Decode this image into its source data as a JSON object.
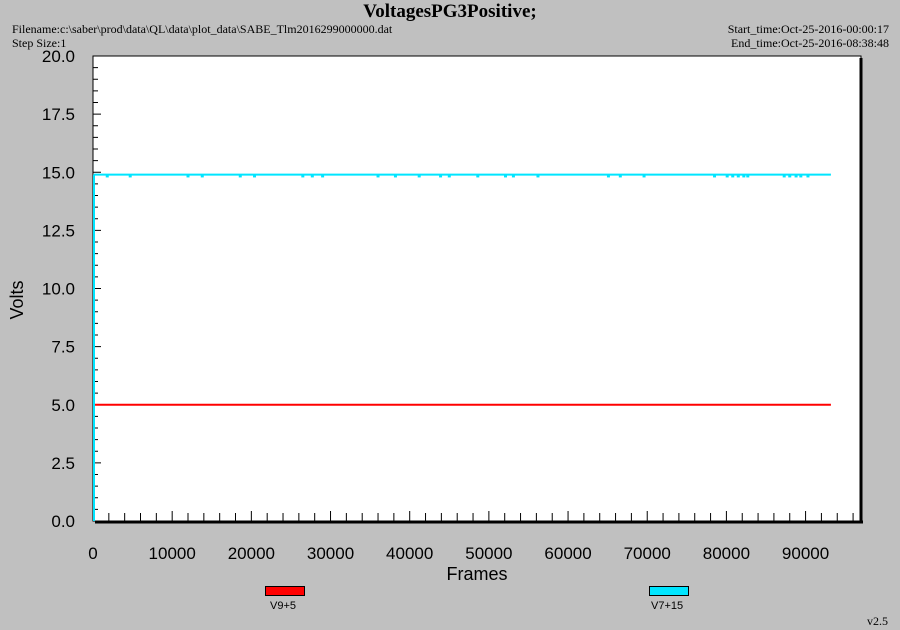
{
  "header": {
    "title": "VoltagesPG3Positive;",
    "filename": "Filename:c:\\saber\\prod\\data\\QL\\data\\plot_data\\SABE_Tlm2016299000000.dat",
    "step_size": "Step Size:1",
    "start_time": "Start_time:Oct-25-2016-00:00:17",
    "end_time": "End_time:Oct-25-2016-08:38:48"
  },
  "version": "v2.5",
  "chart_data": {
    "type": "line",
    "xlabel": "Frames",
    "ylabel": "Volts",
    "xlim": [
      0,
      97000
    ],
    "ylim": [
      0,
      20
    ],
    "x_ticks": [
      "0",
      "10000",
      "20000",
      "30000",
      "40000",
      "50000",
      "60000",
      "70000",
      "80000",
      "90000"
    ],
    "y_ticks": [
      "0.0",
      "2.5",
      "5.0",
      "7.5",
      "10.0",
      "12.5",
      "15.0",
      "17.5",
      "20.0"
    ],
    "grid": false,
    "legend_position": "bottom",
    "series": [
      {
        "name": "V9+5",
        "color": "#ff0000",
        "x_range": [
          0,
          93200
        ],
        "value": 5.0
      },
      {
        "name": "V7+15",
        "color": "#00e5ff",
        "x_range": [
          0,
          93200
        ],
        "value": 14.9,
        "dips": [
          {
            "x": 1800,
            "value": 14.82
          },
          {
            "x": 4700,
            "value": 14.82
          },
          {
            "x": 12000,
            "value": 14.82
          },
          {
            "x": 13800,
            "value": 14.82
          },
          {
            "x": 18600,
            "value": 14.82
          },
          {
            "x": 20400,
            "value": 14.82
          },
          {
            "x": 26500,
            "value": 14.82
          },
          {
            "x": 27700,
            "value": 14.82
          },
          {
            "x": 29000,
            "value": 14.82
          },
          {
            "x": 36000,
            "value": 14.82
          },
          {
            "x": 38200,
            "value": 14.82
          },
          {
            "x": 41200,
            "value": 14.82
          },
          {
            "x": 43900,
            "value": 14.82
          },
          {
            "x": 45000,
            "value": 14.82
          },
          {
            "x": 48600,
            "value": 14.82
          },
          {
            "x": 52100,
            "value": 14.82
          },
          {
            "x": 53100,
            "value": 14.82
          },
          {
            "x": 56200,
            "value": 14.82
          },
          {
            "x": 65100,
            "value": 14.82
          },
          {
            "x": 66600,
            "value": 14.82
          },
          {
            "x": 69600,
            "value": 14.82
          },
          {
            "x": 78500,
            "value": 14.82
          },
          {
            "x": 80100,
            "value": 14.82
          },
          {
            "x": 80800,
            "value": 14.82
          },
          {
            "x": 81500,
            "value": 14.82
          },
          {
            "x": 82200,
            "value": 14.82
          },
          {
            "x": 82700,
            "value": 14.82
          },
          {
            "x": 87300,
            "value": 14.82
          },
          {
            "x": 88000,
            "value": 14.82
          },
          {
            "x": 88800,
            "value": 14.82
          },
          {
            "x": 89400,
            "value": 14.82
          },
          {
            "x": 90300,
            "value": 14.82
          }
        ]
      }
    ]
  }
}
